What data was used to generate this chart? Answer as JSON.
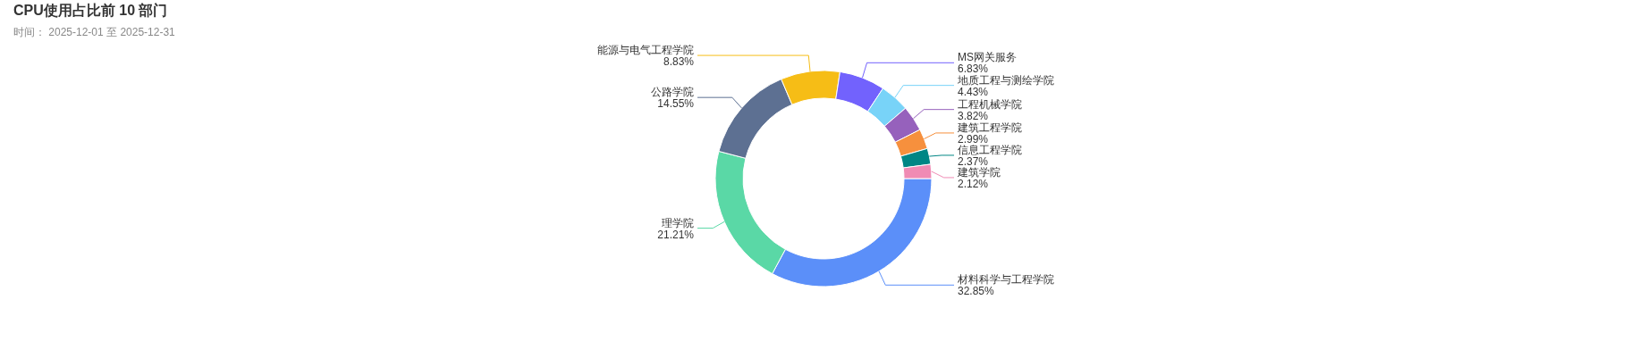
{
  "chart_data": {
    "type": "donut",
    "title": "CPU使用占比前 10 部门",
    "subtitle": "时间： 2025-12-01 至 2025-12-31",
    "categories": [
      "材料科学与工程学院",
      "理学院",
      "公路学院",
      "能源与电气工程学院",
      "MS网关服务",
      "地质工程与测绘学院",
      "工程机械学院",
      "建筑工程学院",
      "信息工程学院",
      "建筑学院"
    ],
    "values": [
      32.85,
      21.21,
      14.55,
      8.83,
      6.83,
      4.43,
      3.82,
      2.99,
      2.37,
      2.12
    ],
    "colors": [
      "#5b8ff9",
      "#5ad8a6",
      "#5d7092",
      "#f6bd16",
      "#7262fd",
      "#78d3f8",
      "#9661bc",
      "#f6903d",
      "#008685",
      "#f08bb4"
    ],
    "value_labels": [
      "32.85%",
      "21.21%",
      "14.55%",
      "8.83%",
      "6.83%",
      "4.43%",
      "3.82%",
      "2.99%",
      "2.37%",
      "2.12%"
    ]
  }
}
